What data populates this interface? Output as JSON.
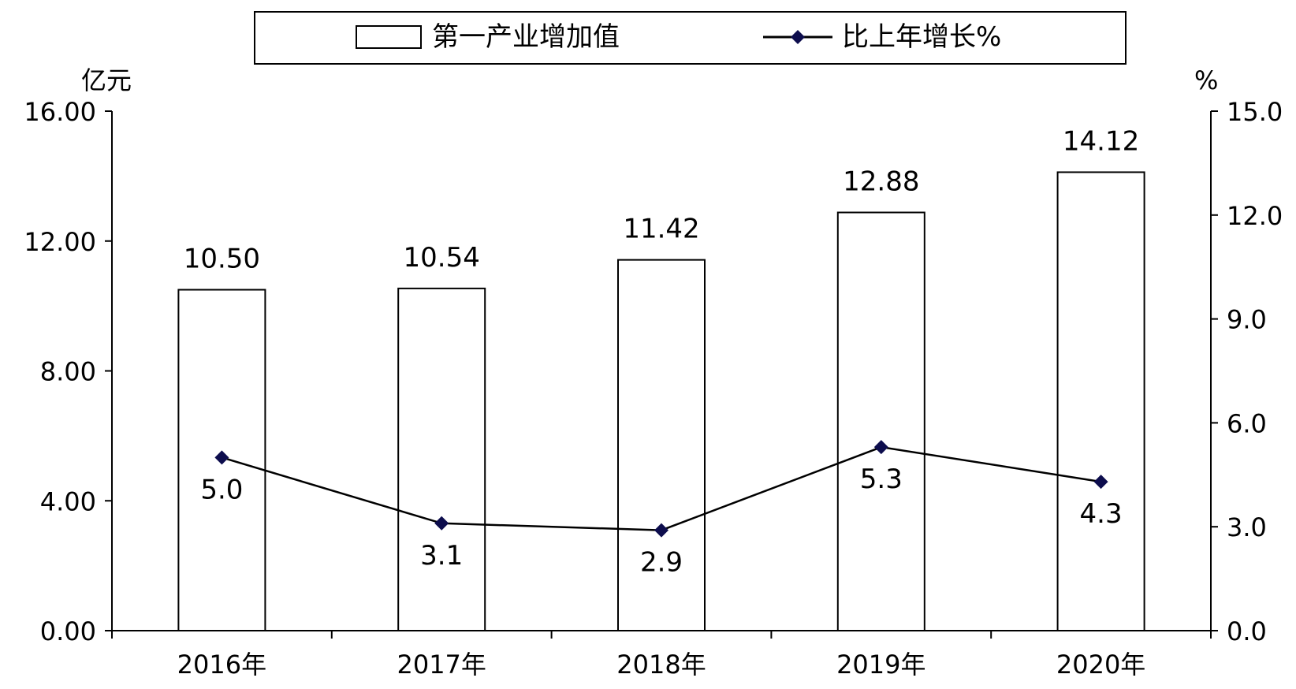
{
  "chart_data": {
    "type": "bar",
    "categories": [
      "2016年",
      "2017年",
      "2018年",
      "2019年",
      "2020年"
    ],
    "series": [
      {
        "name": "第一产业增加值",
        "type": "bar",
        "axis": "left",
        "values": [
          10.5,
          10.54,
          11.42,
          12.88,
          14.12
        ],
        "labels": [
          "10.50",
          "10.54",
          "11.42",
          "12.88",
          "14.12"
        ]
      },
      {
        "name": "比上年增长%",
        "type": "line",
        "axis": "right",
        "values": [
          5.0,
          3.1,
          2.9,
          5.3,
          4.3
        ],
        "labels": [
          "5.0",
          "3.1",
          "2.9",
          "5.3",
          "4.3"
        ]
      }
    ],
    "left_axis": {
      "label": "亿元",
      "ylim": [
        0,
        16
      ],
      "ticks": [
        "0.00",
        "4.00",
        "8.00",
        "12.00",
        "16.00"
      ]
    },
    "right_axis": {
      "label": "%",
      "ylim": [
        0,
        15
      ],
      "ticks": [
        "0.0",
        "3.0",
        "6.0",
        "9.0",
        "12.0",
        "15.0"
      ]
    },
    "legend_position": "top",
    "grid": false,
    "colors": {
      "bar_fill": "#ffffff",
      "bar_stroke": "#000000",
      "line": "#000000",
      "marker": "#0d0d4d"
    }
  }
}
